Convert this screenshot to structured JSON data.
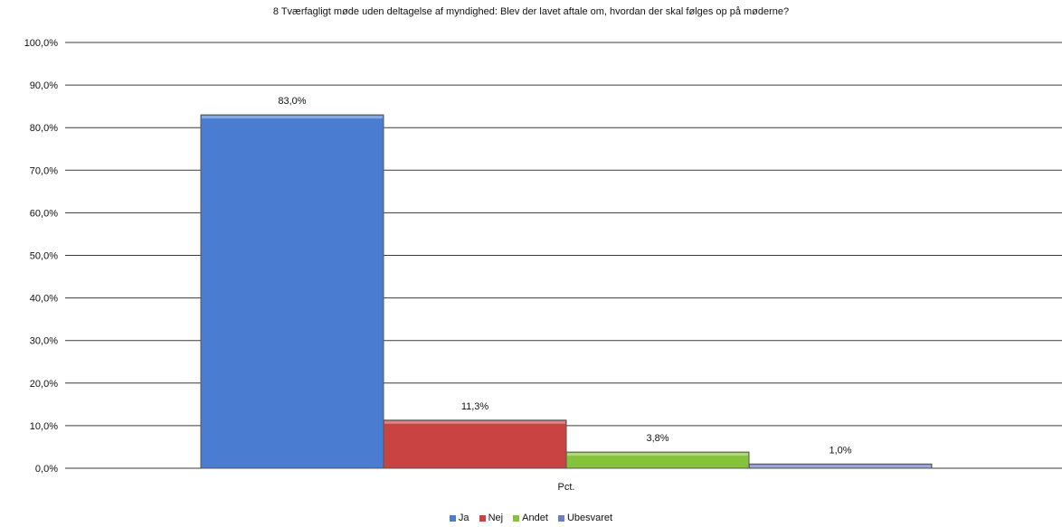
{
  "chart_data": {
    "type": "bar",
    "title": "8 Tværfagligt møde uden deltagelse af myndighed: Blev der lavet aftale om, hvordan der skal følges op på møderne?",
    "categories": [
      "Pct."
    ],
    "series": [
      {
        "name": "Ja",
        "values": [
          83.0
        ],
        "label": "83,0%",
        "color": "#4a7dd1"
      },
      {
        "name": "Nej",
        "values": [
          11.3
        ],
        "label": "11,3%",
        "color": "#c94343"
      },
      {
        "name": "Andet",
        "values": [
          3.8
        ],
        "label": "3,8%",
        "color": "#86c23c"
      },
      {
        "name": "Ubesvaret",
        "values": [
          1.0
        ],
        "label": "1,0%",
        "color": "#6c7bc2"
      }
    ],
    "ylim": [
      0,
      100
    ],
    "yticks": [
      "0,0%",
      "10,0%",
      "20,0%",
      "30,0%",
      "40,0%",
      "50,0%",
      "60,0%",
      "70,0%",
      "80,0%",
      "90,0%",
      "100,0%"
    ],
    "grid": true,
    "legend_position": "bottom",
    "legend_labels": [
      "Ja",
      "Nej",
      "Andet",
      "Ubesvaret"
    ]
  }
}
